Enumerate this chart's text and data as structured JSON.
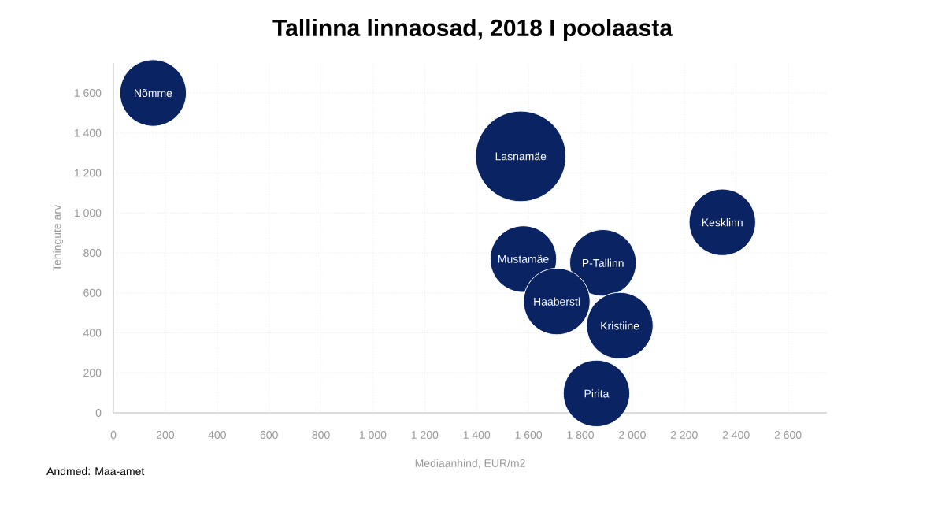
{
  "chart_data": {
    "type": "bubble",
    "title": "Tallinna linnaosad, 2018 I poolaasta",
    "xlabel": "Mediaanhind, EUR/m2",
    "ylabel": "Tehingute arv",
    "annotations": [
      "Andmed: Maa-amet"
    ],
    "xlim": [
      0,
      2750
    ],
    "ylim": [
      0,
      1750
    ],
    "grid": true,
    "xticks": [
      0,
      200,
      400,
      600,
      800,
      {
        "value": 1000,
        "label": "1 000"
      },
      {
        "value": 1200,
        "label": "1 200"
      },
      {
        "value": 1400,
        "label": "1 400"
      },
      {
        "value": 1600,
        "label": "1 600"
      },
      {
        "value": 1800,
        "label": "1 800"
      },
      {
        "value": 2000,
        "label": "2 000"
      },
      {
        "value": 2200,
        "label": "2 200"
      },
      {
        "value": 2400,
        "label": "2 400"
      },
      {
        "value": 2600,
        "label": "2 600"
      }
    ],
    "yticks": [
      0,
      200,
      400,
      600,
      800,
      {
        "value": 1000,
        "label": "1 000"
      },
      {
        "value": 1200,
        "label": "1 200"
      },
      {
        "value": 1400,
        "label": "1 400"
      },
      {
        "value": 1600,
        "label": "1 600"
      }
    ],
    "series": [
      {
        "name": "Nõmme",
        "color": "#0a2463",
        "x": [
          153
        ],
        "values": [
          1600
        ],
        "sizes": [
          0.54
        ]
      },
      {
        "name": "Lasnamäe",
        "color": "#0a2463",
        "x": [
          1570
        ],
        "values": [
          1283
        ],
        "sizes": [
          1
        ]
      },
      {
        "name": "Kesklinn",
        "color": "#0a2463",
        "x": [
          2347
        ],
        "values": [
          953
        ],
        "sizes": [
          0.54
        ]
      },
      {
        "name": "Mustamäe",
        "color": "#0a2463",
        "x": [
          1580
        ],
        "values": [
          769
        ],
        "sizes": [
          0.54
        ]
      },
      {
        "name": "P-Tallinn",
        "color": "#0a2463",
        "x": [
          1887
        ],
        "values": [
          750
        ],
        "sizes": [
          0.54
        ]
      },
      {
        "name": "Haabersti",
        "color": "#0a2463",
        "x": [
          1709
        ],
        "values": [
          557
        ],
        "sizes": [
          0.54
        ]
      },
      {
        "name": "Kristiine",
        "color": "#0a2463",
        "x": [
          1952
        ],
        "values": [
          436
        ],
        "sizes": [
          0.54
        ]
      },
      {
        "name": "Pirita",
        "color": "#0a2463",
        "x": [
          1862
        ],
        "values": [
          97
        ],
        "sizes": [
          0.54
        ]
      }
    ]
  }
}
